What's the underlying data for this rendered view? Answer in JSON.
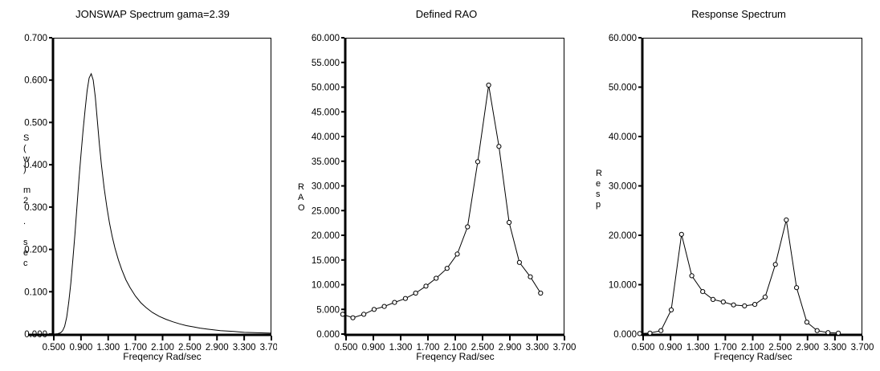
{
  "page": {
    "background": "#ffffff",
    "foreground": "#000000",
    "description": "Three side-by-side spectral analysis plots"
  },
  "chart_data": [
    {
      "id": "jonswap-spectrum",
      "type": "line",
      "title": "JONSWAP Spectrum gama=2.39",
      "xlabel": "Freqency Rad/sec",
      "ylabel": "S(w) m2 . sec",
      "ylabel_stack": [
        "S",
        "(",
        "w",
        ")",
        "",
        "m",
        "2",
        "",
        ".",
        "",
        "s",
        "e",
        "c"
      ],
      "line_color": "#000000",
      "markers": false,
      "xlim": [
        0.5,
        3.7
      ],
      "ylim": [
        0,
        0.7
      ],
      "xtick_values": [
        0.5,
        0.9,
        1.3,
        1.7,
        2.1,
        2.5,
        2.9,
        3.3,
        3.7
      ],
      "xtick_labels": [
        "0.500",
        "0.900",
        "1.300",
        "1.700",
        "2.100",
        "2.500",
        "2.900",
        "3.300",
        "3.700"
      ],
      "ytick_values": [
        0,
        0.1,
        0.2,
        0.3,
        0.4,
        0.5,
        0.6,
        0.7
      ],
      "ytick_labels": [
        "0.000",
        "0.100",
        "0.200",
        "0.300",
        "0.400",
        "0.500",
        "0.600",
        "0.700"
      ],
      "x": [
        0.5,
        0.56,
        0.6,
        0.63,
        0.66,
        0.69,
        0.72,
        0.75,
        0.78,
        0.81,
        0.84,
        0.87,
        0.9,
        0.93,
        0.96,
        0.99,
        1.02,
        1.05,
        1.08,
        1.11,
        1.14,
        1.17,
        1.2,
        1.24,
        1.28,
        1.32,
        1.36,
        1.4,
        1.45,
        1.5,
        1.56,
        1.62,
        1.7,
        1.78,
        1.86,
        1.95,
        2.05,
        2.15,
        2.25,
        2.35,
        2.45,
        2.55,
        2.65,
        2.75,
        2.85,
        2.95,
        3.05,
        3.15,
        3.3,
        3.5,
        3.7
      ],
      "y": [
        0.0,
        0.001,
        0.003,
        0.008,
        0.018,
        0.04,
        0.075,
        0.12,
        0.175,
        0.235,
        0.3,
        0.365,
        0.425,
        0.48,
        0.53,
        0.575,
        0.605,
        0.615,
        0.6,
        0.56,
        0.505,
        0.45,
        0.4,
        0.345,
        0.3,
        0.262,
        0.23,
        0.203,
        0.175,
        0.152,
        0.128,
        0.11,
        0.09,
        0.074,
        0.062,
        0.051,
        0.042,
        0.035,
        0.029,
        0.024,
        0.02,
        0.017,
        0.014,
        0.012,
        0.01,
        0.008,
        0.007,
        0.006,
        0.004,
        0.003,
        0.002
      ]
    },
    {
      "id": "defined-rao",
      "type": "line",
      "title": "Defined RAO",
      "xlabel": "Freqency Rad/sec",
      "ylabel": "RAO",
      "ylabel_stack": [
        "R",
        "A",
        "O"
      ],
      "line_color": "#000000",
      "markers": true,
      "marker_style": "open-circle",
      "xlim": [
        0.5,
        3.7
      ],
      "ylim": [
        0,
        60
      ],
      "xtick_values": [
        0.5,
        0.9,
        1.3,
        1.7,
        2.1,
        2.5,
        2.9,
        3.3,
        3.7
      ],
      "xtick_labels": [
        "0.500",
        "0.900",
        "1.300",
        "1.700",
        "2.100",
        "2.500",
        "2.900",
        "3.300",
        "3.700"
      ],
      "ytick_values": [
        0,
        5,
        10,
        15,
        20,
        25,
        30,
        35,
        40,
        45,
        50,
        55,
        60
      ],
      "ytick_labels": [
        "0.000",
        "5.000",
        "10.000",
        "15.000",
        "20.000",
        "25.000",
        "30.000",
        "35.000",
        "40.000",
        "45.000",
        "50.000",
        "55.000",
        "60.000"
      ],
      "x": [
        0.45,
        0.6,
        0.76,
        0.91,
        1.06,
        1.21,
        1.37,
        1.52,
        1.67,
        1.82,
        1.98,
        2.13,
        2.28,
        2.43,
        2.59,
        2.74,
        2.89,
        3.04,
        3.2,
        3.35
      ],
      "y": [
        4.0,
        3.3,
        4.0,
        5.0,
        5.6,
        6.4,
        7.2,
        8.3,
        9.7,
        11.3,
        13.3,
        16.2,
        21.7,
        34.9,
        50.4,
        38.0,
        22.6,
        14.5,
        11.6,
        8.3
      ]
    },
    {
      "id": "response-spectrum",
      "type": "line",
      "title": "Response Spectrum",
      "xlabel": "Freqency Rad/sec",
      "ylabel": "Resp",
      "ylabel_stack": [
        "R",
        "e",
        "s",
        "p"
      ],
      "line_color": "#000000",
      "markers": true,
      "marker_style": "open-circle",
      "xlim": [
        0.5,
        3.7
      ],
      "ylim": [
        0,
        60
      ],
      "xtick_values": [
        0.5,
        0.9,
        1.3,
        1.7,
        2.1,
        2.5,
        2.9,
        3.3,
        3.7
      ],
      "xtick_labels": [
        "0.500",
        "0.900",
        "1.300",
        "1.700",
        "2.100",
        "2.500",
        "2.900",
        "3.300",
        "3.700"
      ],
      "ytick_values": [
        0,
        10,
        20,
        30,
        40,
        50,
        60
      ],
      "ytick_labels": [
        "0.000",
        "10.000",
        "20.000",
        "30.000",
        "40.000",
        "50.000",
        "60.000"
      ],
      "x": [
        0.45,
        0.6,
        0.76,
        0.91,
        1.06,
        1.21,
        1.37,
        1.52,
        1.67,
        1.82,
        1.98,
        2.13,
        2.28,
        2.43,
        2.59,
        2.74,
        2.89,
        3.04,
        3.2,
        3.35
      ],
      "y": [
        0.1,
        0.2,
        0.7,
        4.9,
        20.2,
        11.8,
        8.6,
        7.0,
        6.5,
        5.9,
        5.7,
        6.0,
        7.5,
        14.1,
        23.1,
        9.4,
        2.4,
        0.7,
        0.3,
        0.2
      ]
    }
  ]
}
